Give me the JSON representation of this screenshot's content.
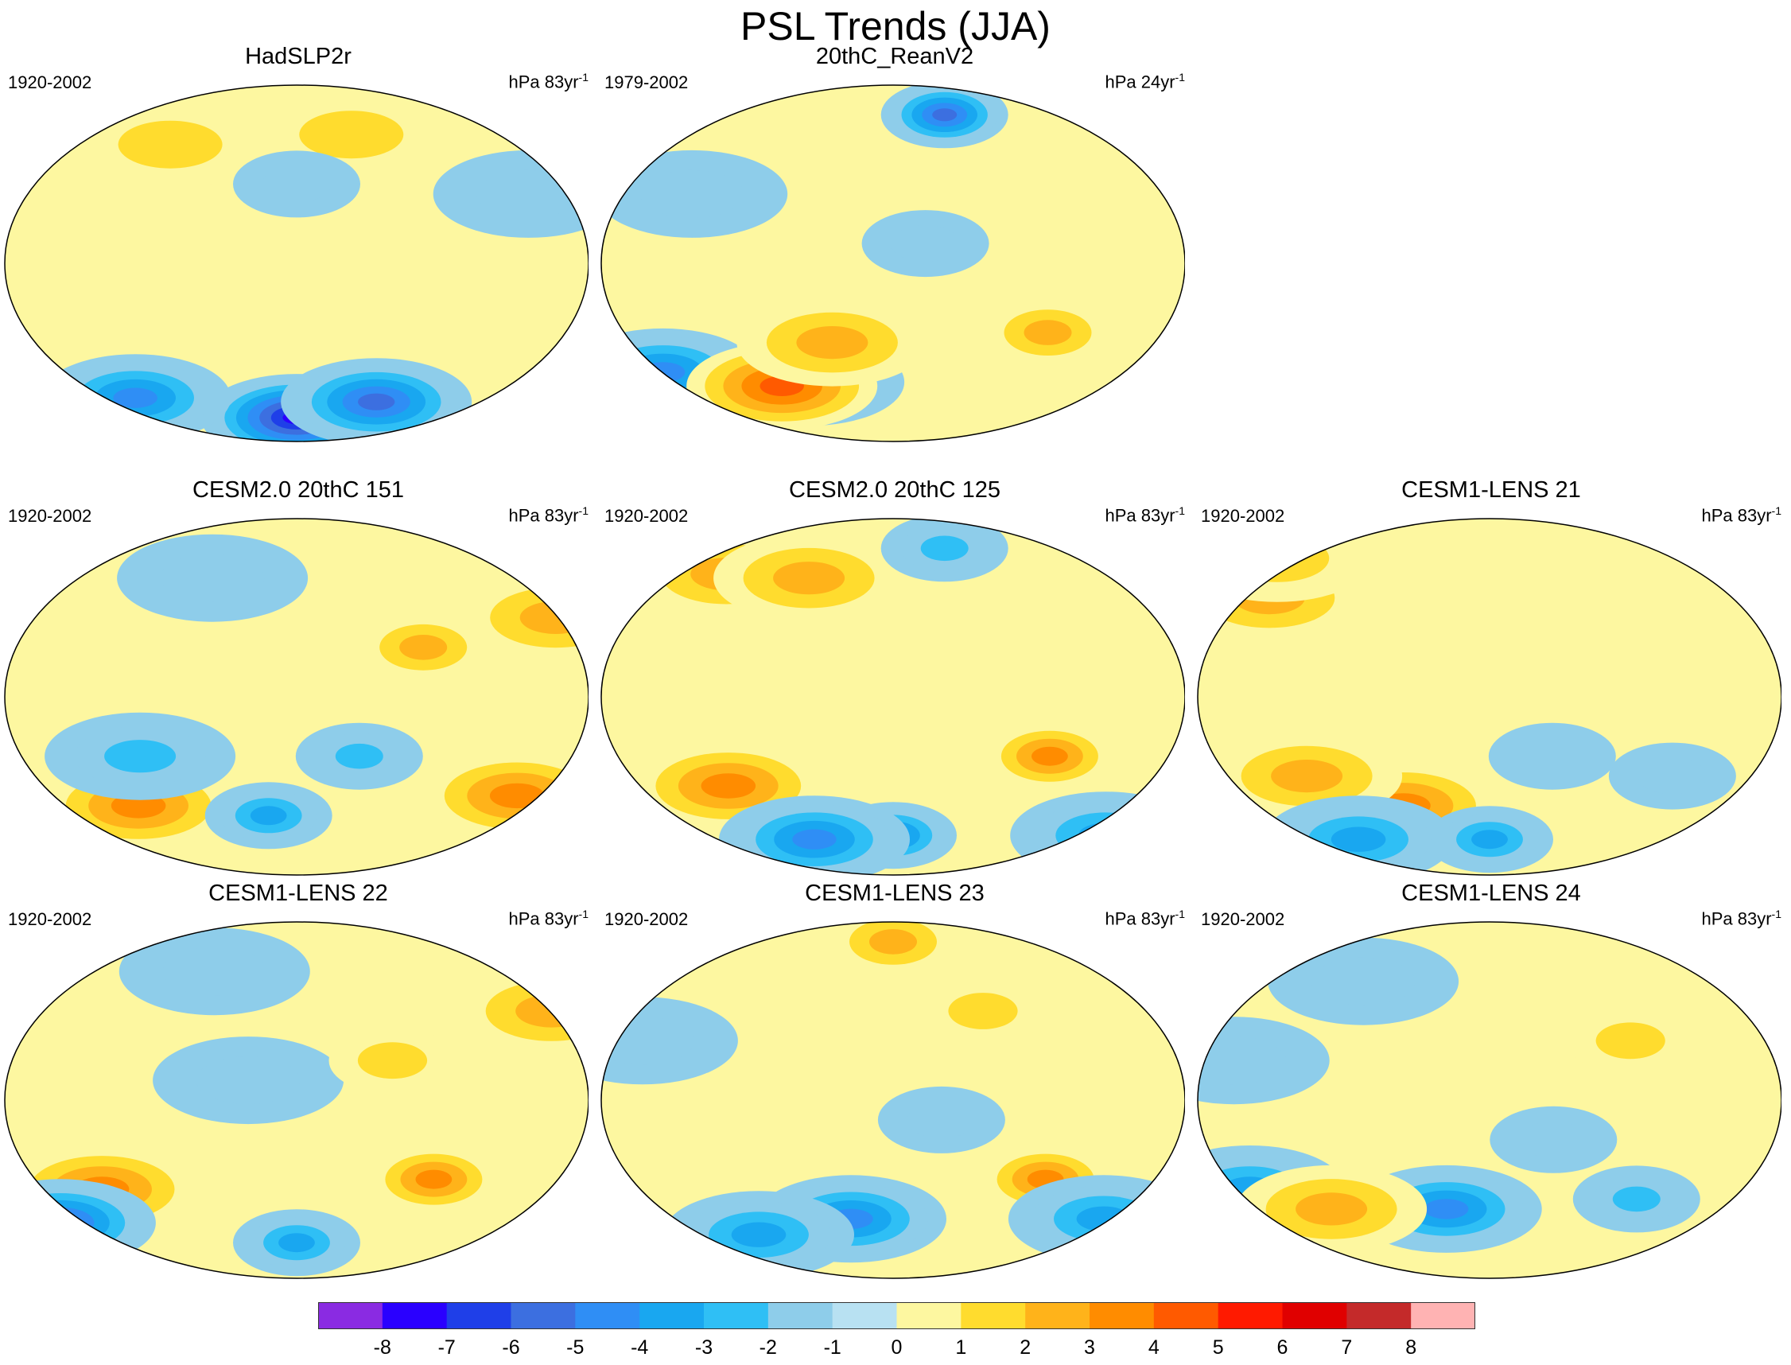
{
  "chart_data": {
    "type": "heatmap",
    "title": "PSL Trends (JJA)",
    "colorbar": {
      "labels": [
        "-8",
        "-7",
        "-6",
        "-5",
        "-4",
        "-3",
        "-2",
        "-1",
        "0",
        "1",
        "2",
        "3",
        "4",
        "5",
        "6",
        "7",
        "8"
      ],
      "colors": [
        "#8a2be2",
        "#2a00ff",
        "#1f3fe8",
        "#3c6fe0",
        "#2f8ef5",
        "#19a7f0",
        "#2fbff5",
        "#8ecdea",
        "#b8e1f2",
        "#fdf7a0",
        "#ffdc2e",
        "#ffb31a",
        "#ff8c00",
        "#ff5a00",
        "#ff1a00",
        "#e00000",
        "#c42a2a",
        "#ffb3b3"
      ]
    },
    "panels": [
      {
        "title": "HadSLP2r",
        "period": "1920-2002",
        "units": "hPa 83yr",
        "units_exp": "-1",
        "blobs": [
          [
            0,
            -78,
            1,
            -7
          ],
          [
            60,
            -70,
            1,
            -5
          ],
          [
            -120,
            -68,
            1,
            -4
          ],
          [
            -90,
            60,
            1,
            1
          ],
          [
            40,
            65,
            1,
            1
          ],
          [
            0,
            40,
            0,
            -1
          ],
          [
            150,
            35,
            1,
            -1
          ]
        ]
      },
      {
        "title": "20thC_ReanV2",
        "period": "1979-2002",
        "units": "hPa 24yr",
        "units_exp": "-1",
        "blobs": [
          [
            40,
            75,
            0,
            -5
          ],
          [
            -60,
            -60,
            1,
            -4
          ],
          [
            -160,
            -55,
            1,
            -4
          ],
          [
            -80,
            -62,
            1,
            4
          ],
          [
            -130,
            35,
            1,
            -1
          ],
          [
            20,
            10,
            0,
            -1
          ],
          [
            -40,
            -40,
            1,
            2
          ],
          [
            100,
            -35,
            0,
            2
          ]
        ]
      },
      {
        "title": "CESM2.0 20thC 151",
        "period": "1920-2002",
        "units": "hPa 83yr",
        "units_exp": "-1",
        "blobs": [
          [
            150,
            -50,
            1,
            3
          ],
          [
            -110,
            -55,
            1,
            3
          ],
          [
            -20,
            -60,
            0,
            -3
          ],
          [
            170,
            40,
            1,
            2
          ],
          [
            80,
            25,
            0,
            2
          ],
          [
            -100,
            -30,
            1,
            -2
          ],
          [
            40,
            -30,
            0,
            -2
          ],
          [
            -60,
            60,
            1,
            -1
          ]
        ]
      },
      {
        "title": "CESM2.0 20thC 125",
        "period": "1920-2002",
        "units": "hPa 83yr",
        "units_exp": "-1",
        "blobs": [
          [
            -110,
            -45,
            1,
            3
          ],
          [
            100,
            -30,
            0,
            3
          ],
          [
            0,
            -70,
            0,
            -4
          ],
          [
            -60,
            -72,
            1,
            -4
          ],
          [
            -120,
            62,
            1,
            2
          ],
          [
            -60,
            60,
            1,
            2
          ],
          [
            160,
            -70,
            1,
            -3
          ],
          [
            40,
            75,
            0,
            -2
          ]
        ]
      },
      {
        "title": "CESM1-LENS 21",
        "period": "1920-2002",
        "units": "hPa 83yr",
        "units_exp": "-1",
        "blobs": [
          [
            -60,
            -55,
            1,
            3
          ],
          [
            -150,
            50,
            1,
            2
          ],
          [
            -120,
            -40,
            1,
            2
          ],
          [
            0,
            -72,
            0,
            -3
          ],
          [
            -100,
            -72,
            1,
            -3
          ],
          [
            120,
            -40,
            0,
            -1
          ],
          [
            40,
            -30,
            0,
            -1
          ],
          [
            -160,
            70,
            1,
            1
          ]
        ]
      },
      {
        "title": "CESM1-LENS 22",
        "period": "1920-2002",
        "units": "hPa 83yr",
        "units_exp": "-1",
        "blobs": [
          [
            -130,
            -45,
            1,
            3
          ],
          [
            90,
            -40,
            0,
            3
          ],
          [
            -170,
            -62,
            1,
            -5
          ],
          [
            0,
            -72,
            0,
            -3
          ],
          [
            170,
            45,
            1,
            2
          ],
          [
            -60,
            65,
            1,
            -1
          ],
          [
            -30,
            10,
            1,
            -1
          ],
          [
            60,
            20,
            0,
            1
          ]
        ]
      },
      {
        "title": "CESM1-LENS 23",
        "period": "1920-2002",
        "units": "hPa 83yr",
        "units_exp": "-1",
        "blobs": [
          [
            100,
            -40,
            0,
            3
          ],
          [
            -30,
            -60,
            1,
            -4
          ],
          [
            -100,
            -68,
            1,
            -3
          ],
          [
            0,
            80,
            0,
            2
          ],
          [
            -160,
            30,
            1,
            -1
          ],
          [
            30,
            -10,
            0,
            -1
          ],
          [
            150,
            -60,
            1,
            -3
          ],
          [
            60,
            45,
            0,
            1
          ]
        ]
      },
      {
        "title": "CESM1-LENS 24",
        "period": "1920-2002",
        "units": "hPa 83yr",
        "units_exp": "-1",
        "blobs": [
          [
            -30,
            -55,
            1,
            -4
          ],
          [
            -160,
            -45,
            1,
            -3
          ],
          [
            -110,
            -55,
            1,
            2
          ],
          [
            100,
            -50,
            0,
            -2
          ],
          [
            -90,
            60,
            1,
            -1
          ],
          [
            90,
            30,
            0,
            1
          ],
          [
            -160,
            20,
            1,
            -1
          ],
          [
            40,
            -20,
            0,
            -1
          ]
        ]
      }
    ]
  }
}
